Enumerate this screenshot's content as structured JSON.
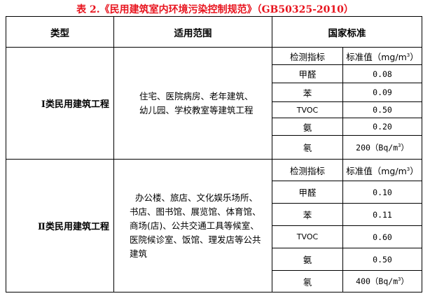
{
  "title": "表 2.《民用建筑室内环境污染控制规范》（GB50325-2010）",
  "headers": {
    "type": "类型",
    "scope": "适用范围",
    "standard": "国家标准"
  },
  "sub_headers": {
    "indicator": "检测指标",
    "value": "标准值（mg/m",
    "value_sup": "3",
    "value_close": "）"
  },
  "sections": [
    {
      "type": "Ⅰ类民用建筑工程",
      "scope_lines": [
        "住宅、医院病房、老年建筑、",
        "幼儿园、学校教室等建筑工程"
      ],
      "rows": [
        {
          "indicator": "甲醛",
          "value": "0.08"
        },
        {
          "indicator": "苯",
          "value": "0.09"
        },
        {
          "indicator": "TVOC",
          "value": "0.50"
        },
        {
          "indicator": "氨",
          "value": "0.20"
        },
        {
          "indicator": "氡",
          "value": "200（Bq/m",
          "sup": "3",
          "close": "）"
        }
      ]
    },
    {
      "type": "Ⅱ类民用建筑工程",
      "scope_lines": [
        "办公楼、旅店、文化娱乐场所、",
        "书店、图书馆、展览馆、体育馆、",
        "商场(店)、公共交通工具等候室、",
        "医院候诊室、饭馆、理发店等公共",
        "建筑"
      ],
      "rows": [
        {
          "indicator": "甲醛",
          "value": "0.10"
        },
        {
          "indicator": "苯",
          "value": "0.11"
        },
        {
          "indicator": "TVOC",
          "value": "0.60"
        },
        {
          "indicator": "氨",
          "value": "0.50"
        },
        {
          "indicator": "氡",
          "value": "400（Bq/m",
          "sup": "3",
          "close": "）"
        }
      ]
    }
  ]
}
